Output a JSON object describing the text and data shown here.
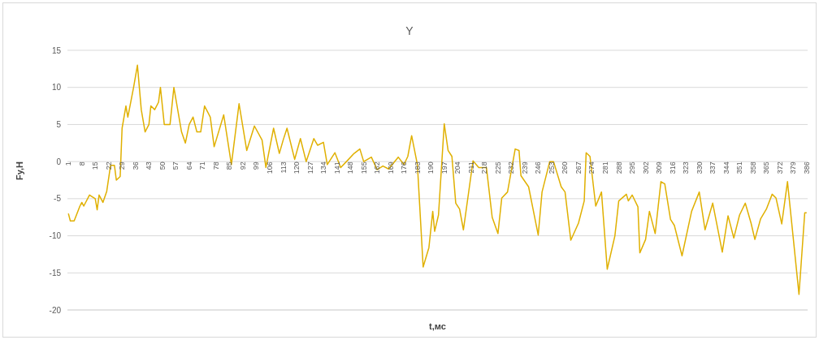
{
  "chart_data": {
    "type": "line",
    "title": "Y",
    "xlabel": "t,мс",
    "ylabel": "Fy,H",
    "xlim": [
      0.5,
      386.5
    ],
    "xticks": [
      1,
      8,
      15,
      22,
      29,
      36,
      43,
      50,
      57,
      64,
      71,
      78,
      85,
      92,
      99,
      106,
      113,
      120,
      127,
      134,
      141,
      148,
      155,
      162,
      169,
      176,
      183,
      190,
      197,
      204,
      211,
      218,
      225,
      232,
      239,
      246,
      253,
      260,
      267,
      274,
      281,
      288,
      295,
      302,
      309,
      316,
      323,
      330,
      337,
      344,
      351,
      358,
      365,
      372,
      379,
      386
    ],
    "ylim": [
      -20,
      15
    ],
    "yticks": [
      -20,
      -15,
      -10,
      -5,
      0,
      5,
      10,
      15
    ],
    "grid": "y",
    "legend": false,
    "marker": "none",
    "line_style": "solid",
    "x": [
      1,
      2,
      4,
      7,
      8,
      9,
      12,
      15,
      16,
      17,
      19,
      21,
      23,
      25,
      26,
      28,
      29,
      31,
      32,
      35,
      37,
      39,
      41,
      43,
      44,
      46,
      48,
      49,
      51,
      54,
      56,
      58,
      60,
      62,
      64,
      66,
      68,
      70,
      72,
      75,
      77,
      82,
      86,
      90,
      94,
      98,
      102,
      104,
      108,
      111,
      113,
      115,
      119,
      122,
      125,
      129,
      131,
      134,
      136,
      140,
      143,
      146,
      150,
      153,
      155,
      159,
      162,
      165,
      168,
      173,
      176,
      178,
      180,
      183,
      186,
      189,
      191,
      192,
      194,
      197,
      199,
      201,
      203,
      205,
      207,
      212,
      215,
      219,
      222,
      225,
      227,
      230,
      234,
      236,
      237,
      241,
      246,
      248,
      252,
      254,
      258,
      260,
      263,
      267,
      270,
      271,
      273,
      276,
      279,
      282,
      286,
      288,
      292,
      293,
      295,
      298,
      299,
      302,
      304,
      307,
      310,
      312,
      315,
      317,
      321,
      326,
      330,
      333,
      337,
      342,
      345,
      348,
      351,
      354,
      357,
      359,
      362,
      365,
      368,
      370,
      373,
      376,
      382,
      385,
      386
    ],
    "series": [
      {
        "color": "#e0b000",
        "values": [
          -7,
          -8,
          -8,
          -6,
          -5.5,
          -6,
          -4.5,
          -5,
          -6.5,
          -4.5,
          -5.5,
          -4,
          -0.5,
          -0.5,
          -2.5,
          -2,
          4.5,
          7.5,
          6,
          10,
          13,
          7,
          4,
          5,
          7.5,
          7,
          8,
          10,
          5,
          5,
          10,
          7,
          4,
          2.5,
          5,
          6,
          4,
          4,
          7.5,
          6,
          2,
          6.3,
          -0.4,
          7.8,
          1.5,
          4.8,
          2.9,
          -0.8,
          4.5,
          1.1,
          2.9,
          4.5,
          0.3,
          3.1,
          0,
          3.1,
          2.2,
          2.6,
          -0.4,
          1.2,
          -0.8,
          0,
          1.1,
          1.7,
          0,
          0.6,
          -1.1,
          -0.6,
          -1,
          0.6,
          -0.4,
          0.7,
          3.5,
          -0.4,
          -14.2,
          -11.6,
          -6.7,
          -9.4,
          -7.2,
          5.1,
          1.5,
          0.7,
          -5.6,
          -6.4,
          -9.2,
          0.1,
          -0.8,
          -0.8,
          -7.5,
          -9.7,
          -4.9,
          -4.1,
          1.7,
          1.5,
          -1.9,
          -3.4,
          -9.9,
          -4.1,
          0,
          0,
          -3.4,
          -4.1,
          -10.6,
          -8.3,
          -5.3,
          1.2,
          0.7,
          -6,
          -4.1,
          -14.5,
          -10,
          -5.3,
          -4.4,
          -5.3,
          -4.5,
          -6.1,
          -12.3,
          -10.5,
          -6.7,
          -9.7,
          -2.7,
          -3,
          -7.8,
          -8.6,
          -12.7,
          -6.7,
          -4.1,
          -9.2,
          -5.6,
          -12.2,
          -7.3,
          -10.3,
          -7.2,
          -5.6,
          -8.3,
          -10.5,
          -7.7,
          -6.4,
          -4.4,
          -4.9,
          -8.4,
          -2.7,
          -17.9,
          -6.9,
          -6.9
        ]
      }
    ]
  }
}
